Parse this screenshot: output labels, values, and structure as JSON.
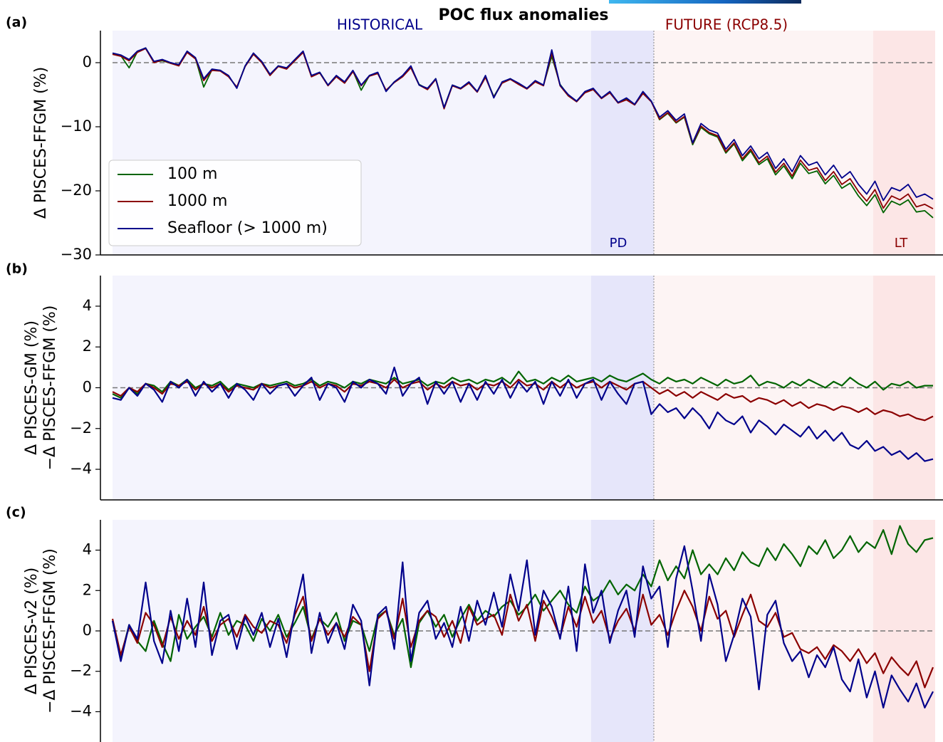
{
  "chart_data": [
    {
      "type": "line",
      "label": "(a)",
      "title": "POC flux anomalies",
      "ylabel": [
        "Δ PISCES-FFGM    (%)"
      ],
      "annotations": [
        "HISTORICAL",
        "FUTURE (RCP8.5)",
        "PD",
        "LT"
      ],
      "ylim": [
        -30,
        5
      ],
      "yticks": [
        0,
        {
          "value": -10,
          "label": "−10"
        },
        {
          "value": -20,
          "label": "−20"
        },
        {
          "value": -30,
          "label": "−30"
        }
      ],
      "zero_line": true,
      "legend": "lower left",
      "series": [
        {
          "name": "100 m",
          "color": "#006400",
          "values": [
            1.4,
            1.1,
            -0.8,
            1.7,
            2.3,
            0.1,
            0.3,
            -0.1,
            -0.4,
            1.7,
            0.7,
            -3.8,
            -1.1,
            -1.2,
            -2.1,
            -3.9,
            -0.5,
            1.4,
            0.1,
            -1.9,
            -0.5,
            -0.9,
            0.4,
            1.7,
            -2.1,
            -1.5,
            -3.5,
            -2.1,
            -3.1,
            -1.3,
            -4.3,
            -2.0,
            -1.6,
            -4.4,
            -3.0,
            -2.1,
            -0.7,
            -3.4,
            -4.1,
            -2.5,
            -7.0,
            -3.5,
            -4.0,
            -3.1,
            -4.5,
            -2.2,
            -5.3,
            -3.1,
            -2.5,
            -3.3,
            -4.0,
            -2.9,
            -3.5,
            1.0,
            -3.4,
            -5.1,
            -6.0,
            -4.6,
            -4.1,
            -5.5,
            -4.6,
            -6.2,
            -5.7,
            -6.5,
            -4.7,
            -6.0,
            -8.9,
            -7.9,
            -9.4,
            -8.5,
            -12.8,
            -10.1,
            -11.1,
            -11.6,
            -14.1,
            -12.7,
            -15.3,
            -13.8,
            -15.9,
            -15.0,
            -17.5,
            -16.1,
            -18.1,
            -15.7,
            -17.3,
            -16.9,
            -18.9,
            -17.6,
            -19.6,
            -18.8,
            -20.8,
            -22.3,
            -20.6,
            -23.4,
            -21.6,
            -22.2,
            -21.4,
            -23.3,
            -23.1,
            -24.2
          ]
        },
        {
          "name": "1000 m",
          "color": "#8b0000",
          "values": [
            1.3,
            1.0,
            0.3,
            1.6,
            2.2,
            0.0,
            0.4,
            -0.1,
            -0.5,
            1.6,
            0.6,
            -2.8,
            -1.2,
            -1.3,
            -2.2,
            -3.8,
            -0.6,
            1.3,
            0.0,
            -2.0,
            -0.6,
            -1.0,
            0.3,
            1.6,
            -2.2,
            -1.6,
            -3.6,
            -2.2,
            -3.2,
            -1.4,
            -3.6,
            -2.1,
            -1.7,
            -4.3,
            -3.1,
            -2.2,
            -0.8,
            -3.5,
            -4.2,
            -2.6,
            -7.2,
            -3.6,
            -4.1,
            -3.2,
            -4.6,
            -2.3,
            -5.4,
            -3.2,
            -2.6,
            -3.4,
            -4.1,
            -3.0,
            -3.6,
            1.5,
            -3.6,
            -5.2,
            -6.1,
            -4.7,
            -4.2,
            -5.6,
            -4.7,
            -6.3,
            -5.8,
            -6.6,
            -4.8,
            -6.1,
            -8.8,
            -7.8,
            -9.3,
            -8.4,
            -12.6,
            -9.9,
            -10.9,
            -11.4,
            -13.9,
            -12.5,
            -15.0,
            -13.5,
            -15.6,
            -14.6,
            -17.1,
            -15.7,
            -17.7,
            -15.2,
            -16.8,
            -16.4,
            -18.4,
            -17.0,
            -19.0,
            -18.1,
            -20.1,
            -21.6,
            -19.8,
            -22.7,
            -20.8,
            -21.4,
            -20.5,
            -22.5,
            -22.1,
            -22.8
          ]
        },
        {
          "name": "Seafloor (> 1000 m)",
          "color": "#00008b",
          "values": [
            1.5,
            1.2,
            0.5,
            1.8,
            2.3,
            0.2,
            0.5,
            0.0,
            -0.3,
            1.8,
            0.8,
            -2.5,
            -1.0,
            -1.2,
            -2.0,
            -4.0,
            -0.5,
            1.5,
            0.2,
            -1.8,
            -0.5,
            -0.8,
            0.5,
            1.8,
            -2.0,
            -1.5,
            -3.5,
            -2.0,
            -3.0,
            -1.2,
            -3.5,
            -2.0,
            -1.5,
            -4.5,
            -3.0,
            -2.0,
            -0.5,
            -3.5,
            -4.0,
            -2.5,
            -7.0,
            -3.5,
            -4.0,
            -3.0,
            -4.5,
            -2.0,
            -5.5,
            -3.0,
            -2.5,
            -3.2,
            -4.0,
            -2.8,
            -3.5,
            2.0,
            -3.5,
            -5.0,
            -6.0,
            -4.5,
            -4.0,
            -5.5,
            -4.5,
            -6.2,
            -5.5,
            -6.5,
            -4.5,
            -6.0,
            -8.5,
            -7.5,
            -9.0,
            -8.0,
            -12.5,
            -9.5,
            -10.5,
            -11.0,
            -13.5,
            -12.0,
            -14.5,
            -13.0,
            -15.0,
            -14.0,
            -16.5,
            -15.0,
            -17.0,
            -14.5,
            -16.0,
            -15.5,
            -17.5,
            -16.0,
            -18.0,
            -17.0,
            -19.0,
            -20.5,
            -18.5,
            -21.5,
            -19.5,
            -20.0,
            -19.0,
            -21.0,
            -20.5,
            -21.3
          ]
        }
      ]
    },
    {
      "type": "line",
      "label": "(b)",
      "ylabel": [
        "Δ PISCES-GM (%)",
        "−Δ PISCES-FFGM (%)"
      ],
      "ylim": [
        -5.5,
        5.5
      ],
      "yticks": [
        {
          "value": -4,
          "label": "−4"
        },
        {
          "value": -2,
          "label": "−2"
        },
        0,
        2,
        4
      ],
      "zero_line": true,
      "series": [
        {
          "color": "#006400",
          "values": [
            -0.3,
            -0.5,
            0.0,
            -0.3,
            0.2,
            0.1,
            -0.2,
            0.3,
            0.1,
            0.4,
            0.0,
            0.2,
            0.1,
            0.3,
            -0.1,
            0.2,
            0.1,
            0.0,
            0.2,
            0.1,
            0.2,
            0.3,
            0.1,
            0.2,
            0.4,
            0.1,
            0.3,
            0.2,
            0.0,
            0.3,
            0.2,
            0.4,
            0.3,
            0.2,
            0.5,
            0.2,
            0.3,
            0.4,
            0.1,
            0.3,
            0.2,
            0.5,
            0.3,
            0.4,
            0.2,
            0.4,
            0.3,
            0.5,
            0.2,
            0.8,
            0.3,
            0.4,
            0.2,
            0.5,
            0.3,
            0.6,
            0.3,
            0.4,
            0.5,
            0.3,
            0.6,
            0.4,
            0.3,
            0.5,
            0.7,
            0.4,
            0.2,
            0.5,
            0.3,
            0.4,
            0.2,
            0.5,
            0.3,
            0.1,
            0.4,
            0.2,
            0.3,
            0.6,
            0.1,
            0.3,
            0.2,
            0.0,
            0.3,
            0.1,
            0.4,
            0.2,
            0.0,
            0.3,
            0.1,
            0.5,
            0.2,
            0.0,
            0.3,
            -0.1,
            0.2,
            0.1,
            0.3,
            0.0,
            0.1,
            0.1
          ]
        },
        {
          "color": "#8b0000",
          "values": [
            -0.2,
            -0.4,
            0.0,
            -0.2,
            0.2,
            0.0,
            -0.3,
            0.2,
            0.1,
            0.3,
            -0.1,
            0.2,
            0.0,
            0.2,
            -0.2,
            0.1,
            0.0,
            -0.1,
            0.2,
            0.0,
            0.1,
            0.2,
            0.0,
            0.1,
            0.3,
            0.0,
            0.2,
            0.1,
            -0.2,
            0.2,
            0.1,
            0.3,
            0.2,
            0.0,
            0.4,
            0.0,
            0.2,
            0.3,
            -0.1,
            0.2,
            0.0,
            0.3,
            0.1,
            0.2,
            -0.1,
            0.2,
            0.1,
            0.3,
            0.0,
            0.4,
            0.1,
            0.2,
            -0.1,
            0.3,
            0.0,
            0.3,
            0.0,
            0.2,
            0.3,
            0.0,
            0.3,
            0.1,
            -0.1,
            0.2,
            0.3,
            0.0,
            -0.3,
            -0.1,
            -0.4,
            -0.2,
            -0.5,
            -0.2,
            -0.4,
            -0.6,
            -0.3,
            -0.5,
            -0.4,
            -0.7,
            -0.5,
            -0.6,
            -0.8,
            -0.6,
            -0.9,
            -0.7,
            -1.0,
            -0.8,
            -0.9,
            -1.1,
            -0.9,
            -1.0,
            -1.2,
            -1.0,
            -1.3,
            -1.1,
            -1.2,
            -1.4,
            -1.3,
            -1.5,
            -1.6,
            -1.4
          ]
        },
        {
          "color": "#00008b",
          "values": [
            -0.5,
            -0.6,
            0.0,
            -0.4,
            0.2,
            -0.1,
            -0.7,
            0.3,
            0.0,
            0.4,
            -0.4,
            0.3,
            -0.2,
            0.2,
            -0.5,
            0.2,
            -0.1,
            -0.6,
            0.2,
            -0.3,
            0.1,
            0.2,
            -0.4,
            0.1,
            0.5,
            -0.6,
            0.2,
            0.0,
            -0.7,
            0.3,
            0.0,
            0.4,
            0.2,
            -0.3,
            1.0,
            -0.4,
            0.2,
            0.5,
            -0.8,
            0.3,
            -0.3,
            0.3,
            -0.7,
            0.2,
            -0.6,
            0.3,
            -0.3,
            0.4,
            -0.5,
            0.3,
            -0.2,
            0.3,
            -0.8,
            0.3,
            -0.4,
            0.4,
            -0.5,
            0.2,
            0.4,
            -0.6,
            0.3,
            -0.3,
            -0.8,
            0.2,
            0.3,
            -1.3,
            -0.8,
            -1.2,
            -1.0,
            -1.5,
            -1.0,
            -1.4,
            -2.0,
            -1.2,
            -1.6,
            -1.8,
            -1.4,
            -2.2,
            -1.6,
            -1.9,
            -2.3,
            -1.8,
            -2.1,
            -2.4,
            -1.9,
            -2.5,
            -2.1,
            -2.6,
            -2.2,
            -2.8,
            -3.0,
            -2.6,
            -3.1,
            -2.9,
            -3.3,
            -3.1,
            -3.5,
            -3.2,
            -3.6,
            -3.5
          ]
        }
      ]
    },
    {
      "type": "line",
      "label": "(c)",
      "ylabel": [
        "Δ PISCES-v2 (%)",
        "−Δ PISCES-FFGM (%)"
      ],
      "ylim": [
        -5.5,
        5.5
      ],
      "yticks": [
        {
          "value": -4,
          "label": "−4"
        },
        {
          "value": -2,
          "label": "−2"
        },
        0,
        2,
        4
      ],
      "zero_line": true,
      "series": [
        {
          "color": "#006400",
          "values": [
            0.5,
            -1.3,
            0.3,
            -0.5,
            -1.0,
            0.5,
            -0.6,
            -1.5,
            0.8,
            -0.4,
            0.2,
            0.7,
            -0.3,
            0.9,
            -0.2,
            0.5,
            0.3,
            -0.5,
            0.6,
            0.0,
            0.8,
            -0.3,
            0.4,
            1.2,
            -0.4,
            0.6,
            0.2,
            0.9,
            -0.5,
            0.5,
            0.3,
            -1.0,
            0.7,
            1.0,
            -0.2,
            0.6,
            -1.8,
            0.4,
            1.0,
            0.2,
            0.8,
            -0.3,
            0.6,
            1.3,
            0.5,
            1.0,
            0.7,
            1.2,
            1.5,
            0.8,
            1.2,
            1.8,
            1.0,
            1.5,
            2.0,
            1.3,
            0.9,
            2.2,
            1.5,
            1.8,
            2.5,
            1.8,
            2.3,
            2.0,
            2.8,
            2.2,
            3.5,
            2.5,
            3.2,
            2.6,
            4.0,
            2.8,
            3.3,
            2.8,
            3.6,
            3.0,
            3.9,
            3.4,
            3.2,
            4.1,
            3.5,
            4.3,
            3.8,
            3.2,
            4.2,
            3.8,
            4.5,
            3.6,
            4.0,
            4.7,
            3.9,
            4.4,
            4.1,
            5.0,
            3.8,
            5.2,
            4.3,
            3.9,
            4.5,
            4.6
          ]
        },
        {
          "color": "#8b0000",
          "values": [
            0.6,
            -1.2,
            0.2,
            -0.6,
            0.9,
            0.3,
            -0.8,
            0.7,
            -0.4,
            0.5,
            -0.2,
            1.2,
            -0.5,
            0.3,
            0.6,
            -0.3,
            0.8,
            0.2,
            -0.1,
            0.5,
            0.3,
            -0.6,
            0.8,
            1.7,
            -0.5,
            0.6,
            -0.2,
            0.4,
            -0.3,
            0.7,
            0.3,
            -2.0,
            0.6,
            1.0,
            -0.4,
            1.6,
            -0.8,
            0.5,
            1.0,
            0.7,
            -0.3,
            0.5,
            -0.6,
            1.2,
            0.3,
            0.6,
            0.8,
            -0.2,
            1.8,
            0.5,
            1.3,
            -0.5,
            1.5,
            0.7,
            -0.3,
            1.2,
            0.2,
            1.7,
            0.4,
            1.0,
            -0.4,
            0.5,
            1.1,
            0.0,
            1.8,
            0.3,
            0.8,
            -0.2,
            1.0,
            2.0,
            1.2,
            0.0,
            1.7,
            0.6,
            1.0,
            -0.3,
            0.8,
            1.8,
            0.5,
            0.2,
            0.9,
            -0.3,
            -0.1,
            -0.9,
            -1.1,
            -0.8,
            -1.4,
            -0.7,
            -1.0,
            -1.5,
            -0.9,
            -1.6,
            -1.1,
            -2.1,
            -1.3,
            -1.8,
            -2.2,
            -1.5,
            -2.8,
            -1.8
          ]
        },
        {
          "color": "#00008b",
          "values": [
            0.5,
            -1.5,
            0.3,
            -0.4,
            2.4,
            -0.5,
            -1.6,
            1.0,
            -1.0,
            1.6,
            -0.8,
            2.4,
            -1.2,
            0.5,
            0.8,
            -0.9,
            0.7,
            -0.2,
            0.9,
            -0.8,
            0.6,
            -1.3,
            1.0,
            2.8,
            -1.1,
            0.9,
            -0.6,
            0.4,
            -0.9,
            1.3,
            0.5,
            -2.7,
            0.8,
            1.2,
            -0.9,
            3.4,
            -1.5,
            0.9,
            1.5,
            -0.4,
            0.4,
            -0.8,
            1.2,
            -0.5,
            1.5,
            0.3,
            1.9,
            0.2,
            2.8,
            1.0,
            3.5,
            -0.2,
            2.0,
            1.2,
            -0.4,
            2.2,
            -1.0,
            3.3,
            0.9,
            2.0,
            -0.6,
            1.0,
            2.0,
            -0.3,
            3.2,
            1.6,
            2.2,
            -0.8,
            2.6,
            4.2,
            2.0,
            -0.5,
            2.8,
            1.3,
            -1.5,
            -0.2,
            1.6,
            0.7,
            -2.9,
            0.8,
            1.5,
            -0.6,
            -1.5,
            -1.0,
            -2.3,
            -1.2,
            -1.8,
            -0.8,
            -2.4,
            -3.0,
            -1.4,
            -3.3,
            -2.0,
            -3.8,
            -2.2,
            -2.9,
            -3.5,
            -2.6,
            -3.8,
            -3.0
          ]
        }
      ]
    }
  ]
}
